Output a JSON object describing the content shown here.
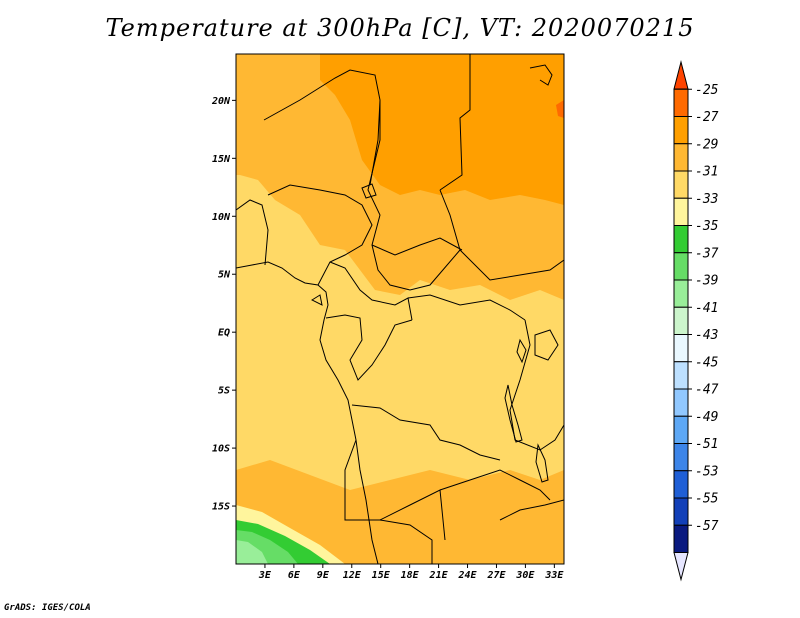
{
  "title": "Temperature at 300hPa [C], VT: 2020070215",
  "footer": "GrADS: IGES/COLA",
  "map": {
    "lon_range": [
      0,
      34
    ],
    "lat_range": [
      -20,
      24
    ],
    "x_ticks": [
      {
        "value": 3,
        "label": "3E"
      },
      {
        "value": 6,
        "label": "6E"
      },
      {
        "value": 9,
        "label": "9E"
      },
      {
        "value": 12,
        "label": "12E"
      },
      {
        "value": 15,
        "label": "15E"
      },
      {
        "value": 18,
        "label": "18E"
      },
      {
        "value": 21,
        "label": "21E"
      },
      {
        "value": 24,
        "label": "24E"
      },
      {
        "value": 27,
        "label": "27E"
      },
      {
        "value": 30,
        "label": "30E"
      },
      {
        "value": 33,
        "label": "33E"
      }
    ],
    "y_ticks": [
      {
        "value": 20,
        "label": "20N"
      },
      {
        "value": 15,
        "label": "15N"
      },
      {
        "value": 10,
        "label": "10N"
      },
      {
        "value": 5,
        "label": "5N"
      },
      {
        "value": 0,
        "label": "EQ"
      },
      {
        "value": -5,
        "label": "5S"
      },
      {
        "value": -10,
        "label": "10S"
      },
      {
        "value": -15,
        "label": "15S"
      }
    ]
  },
  "colorbar": {
    "labels": [
      "-25",
      "-27",
      "-29",
      "-31",
      "-33",
      "-35",
      "-37",
      "-39",
      "-41",
      "-43",
      "-45",
      "-47",
      "-49",
      "-51",
      "-53",
      "-55",
      "-57"
    ],
    "colors": [
      "#ff4400",
      "#ff6a00",
      "#ff9f00",
      "#ffb833",
      "#ffd966",
      "#fff59d",
      "#33cc33",
      "#66dd66",
      "#99ee99",
      "#ccf5cc",
      "#eaf8ff",
      "#bde0ff",
      "#91c8ff",
      "#5ea8f5",
      "#3d85e8",
      "#1f5fd6",
      "#1240b8",
      "#0a1a80",
      "#e6e6ff"
    ]
  }
}
